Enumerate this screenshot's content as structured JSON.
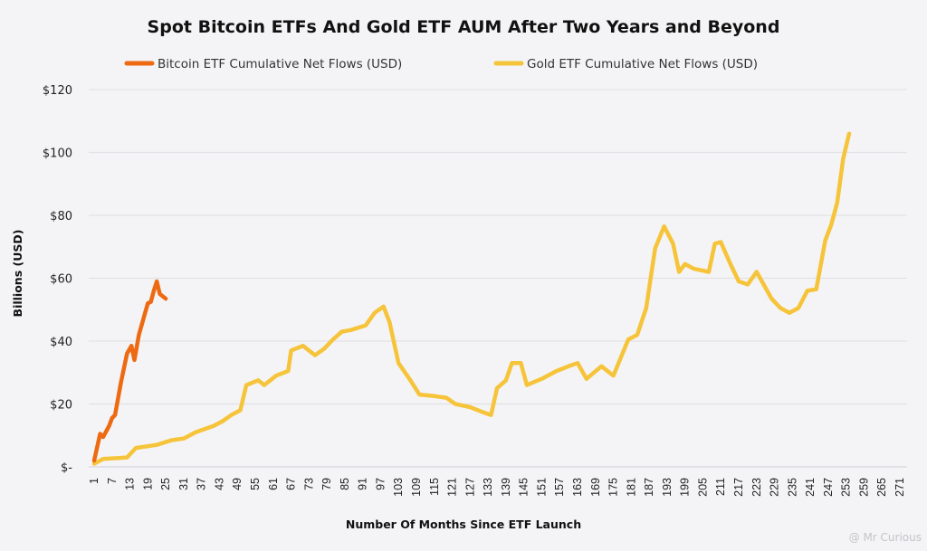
{
  "chart_data": {
    "type": "line",
    "title": "Spot Bitcoin ETFs And Gold ETF AUM After Two Years and Beyond",
    "xlabel": "Number Of Months Since ETF Launch",
    "ylabel": "Billions (USD)",
    "ylim": [
      0,
      120
    ],
    "xlim": [
      1,
      271
    ],
    "yticks": [
      0,
      20,
      40,
      60,
      80,
      100,
      120
    ],
    "ytick_labels": [
      "$-",
      "$20",
      "$40",
      "$60",
      "$80",
      "$100",
      "$120"
    ],
    "xtick_labels": [
      "1",
      "7",
      "13",
      "19",
      "25",
      "31",
      "37",
      "43",
      "49",
      "55",
      "61",
      "67",
      "73",
      "79",
      "85",
      "91",
      "97",
      "103",
      "109",
      "115",
      "121",
      "127",
      "133",
      "139",
      "145",
      "151",
      "157",
      "163",
      "169",
      "175",
      "181",
      "187",
      "193",
      "199",
      "205",
      "211",
      "217",
      "223",
      "229",
      "235",
      "241",
      "247",
      "253",
      "259",
      "265",
      "271"
    ],
    "grid": true,
    "legend_position": "top",
    "series": [
      {
        "name": "Bitcoin ETF Cumulative Net Flows (USD)",
        "color": "#ee6a12",
        "x": [
          1,
          3,
          4,
          6,
          7,
          8,
          10,
          12,
          13.5,
          14.5,
          16,
          19,
          20,
          21,
          22,
          23,
          25
        ],
        "y": [
          2,
          10.5,
          9.5,
          13,
          15.5,
          16.5,
          27,
          36,
          38.5,
          34,
          42,
          52,
          52.5,
          56,
          59,
          55,
          53.5
        ]
      },
      {
        "name": "Gold ETF Cumulative Net Flows (USD)",
        "color": "#f6c43a",
        "x": [
          1,
          4,
          12,
          15,
          22,
          27,
          31,
          35,
          41,
          44,
          47,
          50,
          52,
          56,
          58,
          62,
          66,
          67,
          71,
          75,
          78,
          81,
          84,
          87,
          92,
          95,
          98,
          100,
          103,
          107,
          110,
          115,
          119,
          122,
          127,
          131,
          134,
          136,
          139,
          141,
          144,
          146,
          151,
          156,
          160,
          163,
          166,
          171,
          175,
          180,
          183,
          186,
          189,
          192,
          195,
          197,
          199,
          202,
          207,
          209,
          211,
          214,
          217,
          220,
          223,
          228,
          231,
          234,
          237,
          240,
          243,
          246,
          248,
          250,
          252,
          254
        ],
        "y": [
          1,
          2.5,
          3,
          6,
          7,
          8.5,
          9,
          11,
          13,
          14.5,
          16.5,
          18,
          26,
          27.5,
          26,
          29,
          30.5,
          37,
          38.5,
          35.5,
          37.5,
          40.5,
          43,
          43.5,
          45,
          49,
          51,
          46,
          33,
          27.5,
          23,
          22.5,
          22,
          20,
          19,
          17.5,
          16.5,
          25,
          27.5,
          33,
          33,
          26,
          28,
          30.5,
          32,
          33,
          28,
          32,
          29,
          40.5,
          42,
          50.5,
          69.5,
          76.5,
          71,
          62,
          64.5,
          63,
          62,
          71,
          71.5,
          65,
          59,
          58,
          62,
          53.5,
          50.5,
          49,
          50.5,
          56,
          56.5,
          72,
          77,
          84,
          98,
          106
        ]
      }
    ]
  },
  "watermark": "@ Mr Curious"
}
